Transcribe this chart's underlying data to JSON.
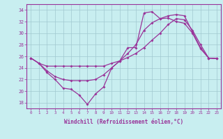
{
  "xlabel": "Windchill (Refroidissement éolien,°C)",
  "background_color": "#c8eef0",
  "grid_color": "#a0c8d0",
  "line_color": "#993399",
  "xlim": [
    -0.5,
    23.5
  ],
  "ylim": [
    17.0,
    35.0
  ],
  "yticks": [
    18,
    20,
    22,
    24,
    26,
    28,
    30,
    32,
    34
  ],
  "xticks": [
    0,
    1,
    2,
    3,
    4,
    5,
    6,
    7,
    8,
    9,
    10,
    11,
    12,
    13,
    14,
    15,
    16,
    17,
    18,
    19,
    20,
    21,
    22,
    23
  ],
  "line1_x": [
    0,
    1,
    2,
    3,
    4,
    5,
    6,
    7,
    8,
    9,
    10,
    11,
    12,
    13,
    14,
    15,
    16,
    17,
    18,
    19,
    20,
    21,
    22,
    23
  ],
  "line1_y": [
    25.7,
    24.8,
    23.2,
    22.0,
    20.5,
    20.3,
    19.3,
    17.7,
    19.5,
    20.7,
    24.0,
    25.2,
    27.5,
    27.5,
    33.5,
    33.7,
    32.5,
    32.6,
    32.0,
    31.7,
    30.0,
    27.3,
    25.7,
    25.6
  ],
  "line2_x": [
    0,
    1,
    2,
    3,
    4,
    5,
    6,
    7,
    8,
    9,
    10,
    11,
    12,
    13,
    14,
    15,
    16,
    17,
    18,
    19,
    20,
    21,
    22,
    23
  ],
  "line2_y": [
    25.7,
    24.8,
    24.3,
    24.3,
    24.3,
    24.3,
    24.3,
    24.3,
    24.3,
    24.3,
    24.8,
    25.2,
    25.8,
    26.5,
    27.5,
    28.8,
    30.0,
    31.5,
    32.5,
    32.3,
    30.5,
    28.0,
    25.7,
    25.6
  ],
  "line3_x": [
    0,
    1,
    2,
    3,
    4,
    5,
    6,
    7,
    8,
    9,
    10,
    11,
    12,
    13,
    14,
    15,
    16,
    17,
    18,
    19,
    20,
    21,
    22,
    23
  ],
  "line3_y": [
    25.7,
    24.8,
    23.5,
    22.5,
    22.0,
    21.8,
    21.8,
    21.8,
    22.0,
    22.8,
    24.0,
    25.2,
    26.5,
    28.0,
    30.5,
    31.8,
    32.5,
    33.0,
    33.2,
    33.0,
    30.2,
    27.5,
    25.7,
    25.6
  ]
}
